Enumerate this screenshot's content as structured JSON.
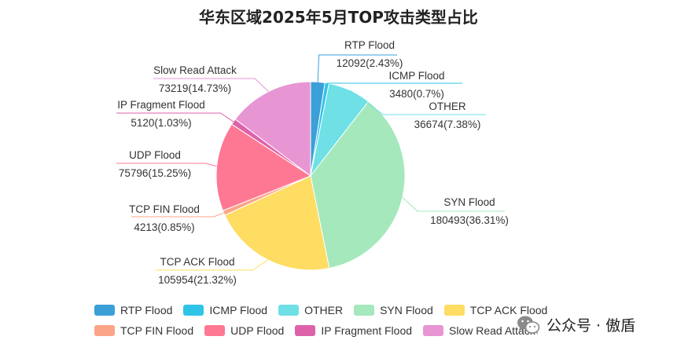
{
  "chart_data": {
    "type": "pie",
    "title": "华东区域2025年5月TOP攻击类型占比",
    "slices": [
      {
        "name": "RTP Flood",
        "value": 12092,
        "percent": "2.43%",
        "color": "#3b9fd8"
      },
      {
        "name": "ICMP Flood",
        "value": 3480,
        "percent": "0.7%",
        "color": "#2ec4e8"
      },
      {
        "name": "OTHER",
        "value": 36674,
        "percent": "7.38%",
        "color": "#6ee0e6"
      },
      {
        "name": "SYN Flood",
        "value": 180493,
        "percent": "36.31%",
        "color": "#a4e8bc"
      },
      {
        "name": "TCP ACK Flood",
        "value": 105954,
        "percent": "21.32%",
        "color": "#ffdc62"
      },
      {
        "name": "TCP FIN Flood",
        "value": 4213,
        "percent": "0.85%",
        "color": "#fca487"
      },
      {
        "name": "UDP Flood",
        "value": 75796,
        "percent": "15.25%",
        "color": "#ff7893"
      },
      {
        "name": "IP Fragment Flood",
        "value": 5120,
        "percent": "1.03%",
        "color": "#dd62a9"
      },
      {
        "name": "Slow Read Attack",
        "value": 73219,
        "percent": "14.73%",
        "color": "#e895d3"
      }
    ],
    "legend_position": "bottom"
  },
  "labels": [
    {
      "name": "RTP Flood",
      "value_text": "12092(2.43%)"
    },
    {
      "name": "ICMP Flood",
      "value_text": "3480(0.7%)"
    },
    {
      "name": "OTHER",
      "value_text": "36674(7.38%)"
    },
    {
      "name": "SYN Flood",
      "value_text": "180493(36.31%)"
    },
    {
      "name": "TCP ACK Flood",
      "value_text": "105954(21.32%)"
    },
    {
      "name": "TCP FIN Flood",
      "value_text": "4213(0.85%)"
    },
    {
      "name": "UDP Flood",
      "value_text": "75796(15.25%)"
    },
    {
      "name": "IP Fragment Flood",
      "value_text": "5120(1.03%)"
    },
    {
      "name": "Slow Read Attack",
      "value_text": "73219(14.73%)"
    }
  ],
  "legend": [
    {
      "label": "RTP Flood",
      "color": "#3b9fd8"
    },
    {
      "label": "ICMP Flood",
      "color": "#2ec4e8"
    },
    {
      "label": "OTHER",
      "color": "#6ee0e6"
    },
    {
      "label": "SYN Flood",
      "color": "#a4e8bc"
    },
    {
      "label": "TCP ACK Flood",
      "color": "#ffdc62"
    },
    {
      "label": "TCP FIN Flood",
      "color": "#fca487"
    },
    {
      "label": "UDP Flood",
      "color": "#ff7893"
    },
    {
      "label": "IP Fragment Flood",
      "color": "#dd62a9"
    },
    {
      "label": "Slow Read Attack",
      "color": "#e895d3"
    }
  ],
  "watermark": {
    "text": "公众号 · 傲盾",
    "icon": "wechat-icon"
  }
}
